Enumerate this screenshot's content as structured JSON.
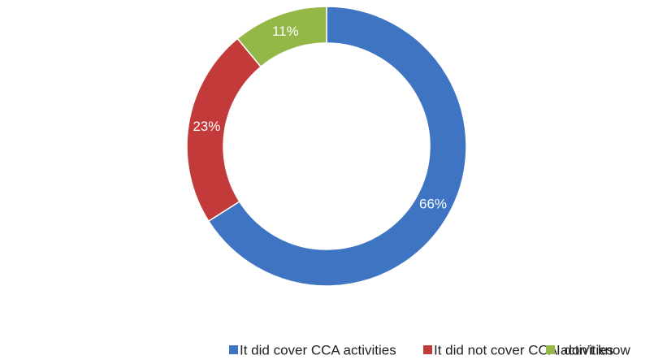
{
  "chart_data": {
    "type": "pie",
    "categories": [
      "It did cover CCA activities",
      "It did not cover CCA activities",
      "I don’t know"
    ],
    "values": [
      66,
      23,
      11
    ],
    "value_labels": [
      "66%",
      "23%",
      "11%"
    ],
    "colors": [
      "#3f74c2",
      "#c23b3a",
      "#94b847"
    ]
  }
}
